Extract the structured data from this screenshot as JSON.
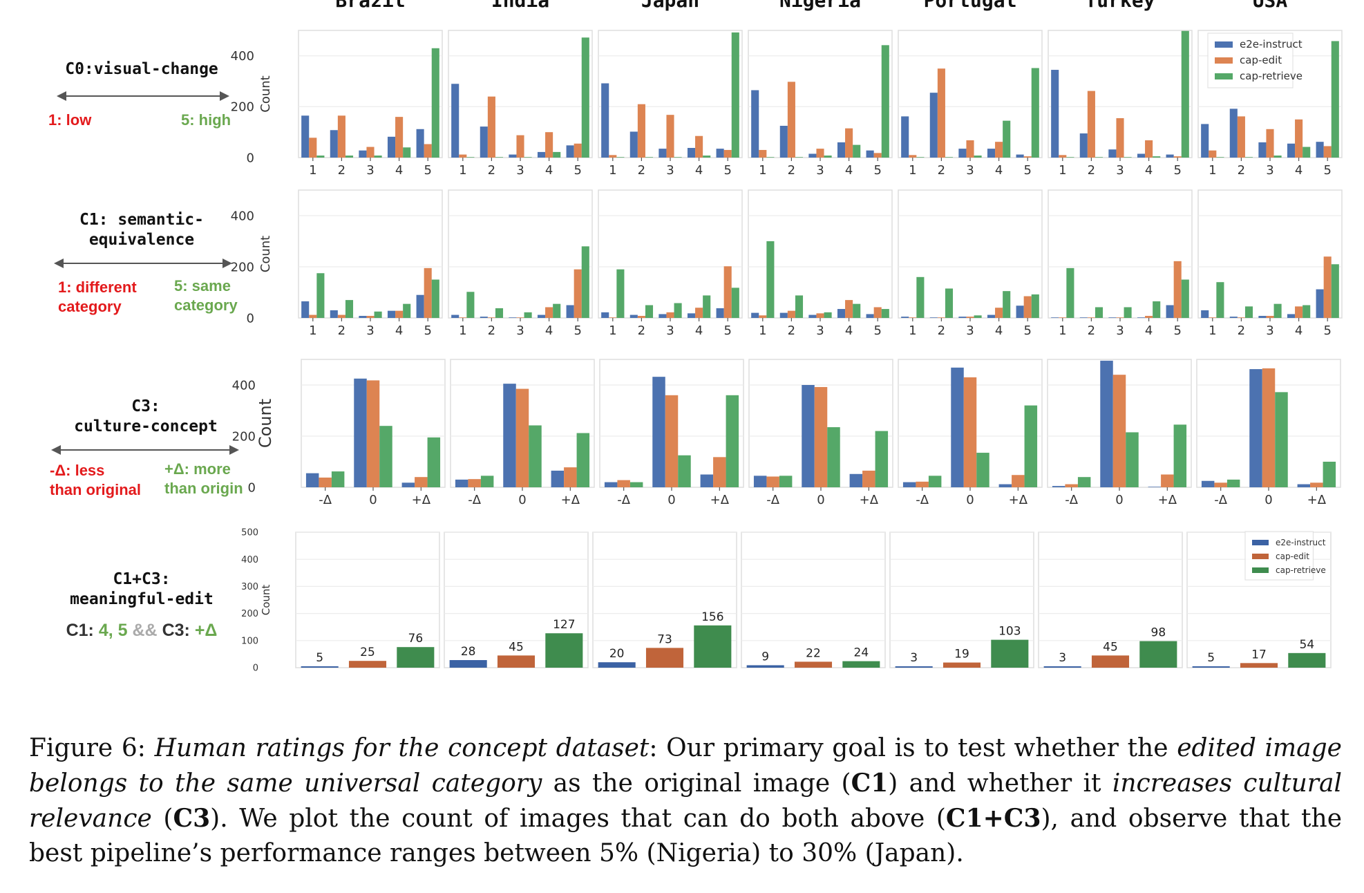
{
  "countries": [
    "Brazil",
    "India",
    "Japan",
    "Nigeria",
    "Portugal",
    "Turkey",
    "USA"
  ],
  "colors": {
    "e2e-instruct": "#4c72b0",
    "cap-edit": "#dd8452",
    "cap-retrieve": "#55a868",
    "e2e-instruct-dark": "#3b62a4",
    "cap-edit-dark": "#c0643a",
    "cap-retrieve-dark": "#3f8c4e"
  },
  "legend": [
    "e2e-instruct",
    "cap-edit",
    "cap-retrieve"
  ],
  "ylabel": "Count",
  "rows": {
    "c0": {
      "title": "C0:visual-change",
      "low": "1: low",
      "high": "5: high"
    },
    "c1": {
      "title_l1": "C1: semantic-",
      "title_l2": "equivalence",
      "low_l1": "1: different",
      "low_l2": "category",
      "high_l1": "5: same",
      "high_l2": "category"
    },
    "c3": {
      "title_l1": "C3:",
      "title_l2": "culture-concept",
      "low_l1": "-Δ: less",
      "low_l2": "than original",
      "high_l1": "+Δ: more",
      "high_l2": "than origin"
    },
    "c13": {
      "title_l1": "C1+C3:",
      "title_l2": "meaningful-edit",
      "f_c1": "C1:",
      "f_vals": "4, 5",
      "f_and": "&&",
      "f_c3": "C3:",
      "f_delta": "+Δ"
    }
  },
  "caption": {
    "fig": "Figure 6:",
    "t1": "Human ratings for the concept dataset",
    "t2": ": Our primary goal is to test whether the ",
    "t3": "edited image belongs to the same universal category",
    "t4": " as the original image (",
    "t5": "C1",
    "t6": ") and whether it ",
    "t7": "increases cultural relevance",
    "t8": " (",
    "t9": "C3",
    "t10": "). We plot the count of images that can do both above (",
    "t11": "C1+C3",
    "t12": "), and observe that the best pipeline’s performance ranges between 5% (Nigeria) to 30% (Japan)."
  },
  "chart_data": [
    {
      "id": "C0",
      "type": "bar",
      "categories": [
        "1",
        "2",
        "3",
        "4",
        "5"
      ],
      "ylim": [
        0,
        500
      ],
      "yticks": [
        0,
        200,
        400
      ],
      "grid": true,
      "legend": "top-right (USA panel)",
      "panels": [
        {
          "country": "Brazil",
          "series": [
            {
              "name": "e2e-instruct",
              "values": [
                165,
                108,
                28,
                82,
                112
              ]
            },
            {
              "name": "cap-edit",
              "values": [
                78,
                165,
                42,
                160,
                53
              ]
            },
            {
              "name": "cap-retrieve",
              "values": [
                8,
                8,
                8,
                40,
                430
              ]
            }
          ]
        },
        {
          "country": "India",
          "series": [
            {
              "name": "e2e-instruct",
              "values": [
                290,
                122,
                12,
                22,
                48
              ]
            },
            {
              "name": "cap-edit",
              "values": [
                12,
                240,
                88,
                100,
                55
              ]
            },
            {
              "name": "cap-retrieve",
              "values": [
                2,
                2,
                2,
                22,
                472
              ]
            }
          ]
        },
        {
          "country": "Japan",
          "series": [
            {
              "name": "e2e-instruct",
              "values": [
                292,
                102,
                35,
                38,
                35
              ]
            },
            {
              "name": "cap-edit",
              "values": [
                10,
                210,
                168,
                85,
                30
              ]
            },
            {
              "name": "cap-retrieve",
              "values": [
                2,
                2,
                2,
                8,
                492
              ]
            }
          ]
        },
        {
          "country": "Nigeria",
          "series": [
            {
              "name": "e2e-instruct",
              "values": [
                265,
                125,
                15,
                60,
                28
              ]
            },
            {
              "name": "cap-edit",
              "values": [
                30,
                298,
                35,
                115,
                18
              ]
            },
            {
              "name": "cap-retrieve",
              "values": [
                2,
                2,
                8,
                50,
                442
              ]
            }
          ]
        },
        {
          "country": "Portugal",
          "series": [
            {
              "name": "e2e-instruct",
              "values": [
                162,
                255,
                35,
                35,
                12
              ]
            },
            {
              "name": "cap-edit",
              "values": [
                10,
                350,
                68,
                62,
                5
              ]
            },
            {
              "name": "cap-retrieve",
              "values": [
                2,
                2,
                8,
                145,
                352
              ]
            }
          ]
        },
        {
          "country": "Turkey",
          "series": [
            {
              "name": "e2e-instruct",
              "values": [
                345,
                95,
                32,
                15,
                12
              ]
            },
            {
              "name": "cap-edit",
              "values": [
                10,
                262,
                155,
                68,
                5
              ]
            },
            {
              "name": "cap-retrieve",
              "values": [
                2,
                2,
                2,
                5,
                498
              ]
            }
          ]
        },
        {
          "country": "USA",
          "series": [
            {
              "name": "e2e-instruct",
              "values": [
                132,
                192,
                60,
                55,
                62
              ]
            },
            {
              "name": "cap-edit",
              "values": [
                28,
                162,
                112,
                150,
                45
              ]
            },
            {
              "name": "cap-retrieve",
              "values": [
                2,
                2,
                8,
                42,
                458
              ]
            }
          ]
        }
      ]
    },
    {
      "id": "C1",
      "type": "bar",
      "categories": [
        "1",
        "2",
        "3",
        "4",
        "5"
      ],
      "ylim": [
        0,
        500
      ],
      "yticks": [
        0,
        200,
        400
      ],
      "grid": true,
      "panels": [
        {
          "country": "Brazil",
          "series": [
            {
              "name": "e2e-instruct",
              "values": [
                65,
                30,
                8,
                28,
                90
              ]
            },
            {
              "name": "cap-edit",
              "values": [
                12,
                12,
                8,
                28,
                195
              ]
            },
            {
              "name": "cap-retrieve",
              "values": [
                175,
                70,
                25,
                55,
                150
              ]
            }
          ]
        },
        {
          "country": "India",
          "series": [
            {
              "name": "e2e-instruct",
              "values": [
                12,
                5,
                2,
                12,
                50
              ]
            },
            {
              "name": "cap-edit",
              "values": [
                2,
                2,
                2,
                42,
                190
              ]
            },
            {
              "name": "cap-retrieve",
              "values": [
                102,
                38,
                22,
                55,
                280
              ]
            }
          ]
        },
        {
          "country": "Japan",
          "series": [
            {
              "name": "e2e-instruct",
              "values": [
                22,
                12,
                15,
                18,
                38
              ]
            },
            {
              "name": "cap-edit",
              "values": [
                2,
                8,
                22,
                40,
                202
              ]
            },
            {
              "name": "cap-retrieve",
              "values": [
                190,
                50,
                58,
                88,
                118
              ]
            }
          ]
        },
        {
          "country": "Nigeria",
          "series": [
            {
              "name": "e2e-instruct",
              "values": [
                20,
                20,
                12,
                35,
                15
              ]
            },
            {
              "name": "cap-edit",
              "values": [
                10,
                28,
                18,
                70,
                42
              ]
            },
            {
              "name": "cap-retrieve",
              "values": [
                300,
                88,
                22,
                55,
                35
              ]
            }
          ]
        },
        {
          "country": "Portugal",
          "series": [
            {
              "name": "e2e-instruct",
              "values": [
                5,
                2,
                5,
                12,
                48
              ]
            },
            {
              "name": "cap-edit",
              "values": [
                2,
                2,
                5,
                40,
                85
              ]
            },
            {
              "name": "cap-retrieve",
              "values": [
                160,
                115,
                10,
                105,
                92
              ]
            }
          ]
        },
        {
          "country": "Turkey",
          "series": [
            {
              "name": "e2e-instruct",
              "values": [
                2,
                2,
                2,
                2,
                50
              ]
            },
            {
              "name": "cap-edit",
              "values": [
                2,
                2,
                2,
                8,
                222
              ]
            },
            {
              "name": "cap-retrieve",
              "values": [
                195,
                42,
                42,
                65,
                150
              ]
            }
          ]
        },
        {
          "country": "USA",
          "series": [
            {
              "name": "e2e-instruct",
              "values": [
                30,
                5,
                8,
                15,
                112
              ]
            },
            {
              "name": "cap-edit",
              "values": [
                2,
                2,
                8,
                45,
                240
              ]
            },
            {
              "name": "cap-retrieve",
              "values": [
                140,
                45,
                55,
                50,
                210
              ]
            }
          ]
        }
      ]
    },
    {
      "id": "C3",
      "type": "bar",
      "categories": [
        "-Δ",
        "0",
        "+Δ"
      ],
      "ylim": [
        0,
        500
      ],
      "yticks": [
        0,
        200,
        400
      ],
      "grid": true,
      "panels": [
        {
          "country": "Brazil",
          "series": [
            {
              "name": "e2e-instruct",
              "values": [
                55,
                425,
                18
              ]
            },
            {
              "name": "cap-edit",
              "values": [
                38,
                418,
                40
              ]
            },
            {
              "name": "cap-retrieve",
              "values": [
                62,
                240,
                195
              ]
            }
          ]
        },
        {
          "country": "India",
          "series": [
            {
              "name": "e2e-instruct",
              "values": [
                30,
                405,
                65
              ]
            },
            {
              "name": "cap-edit",
              "values": [
                32,
                385,
                78
              ]
            },
            {
              "name": "cap-retrieve",
              "values": [
                45,
                242,
                212
              ]
            }
          ]
        },
        {
          "country": "Japan",
          "series": [
            {
              "name": "e2e-instruct",
              "values": [
                20,
                432,
                50
              ]
            },
            {
              "name": "cap-edit",
              "values": [
                28,
                360,
                118
              ]
            },
            {
              "name": "cap-retrieve",
              "values": [
                20,
                125,
                360
              ]
            }
          ]
        },
        {
          "country": "Nigeria",
          "series": [
            {
              "name": "e2e-instruct",
              "values": [
                45,
                400,
                52
              ]
            },
            {
              "name": "cap-edit",
              "values": [
                42,
                392,
                65
              ]
            },
            {
              "name": "cap-retrieve",
              "values": [
                45,
                235,
                220
              ]
            }
          ]
        },
        {
          "country": "Portugal",
          "series": [
            {
              "name": "e2e-instruct",
              "values": [
                20,
                468,
                12
              ]
            },
            {
              "name": "cap-edit",
              "values": [
                22,
                430,
                48
              ]
            },
            {
              "name": "cap-retrieve",
              "values": [
                45,
                135,
                320
              ]
            }
          ]
        },
        {
          "country": "Turkey",
          "series": [
            {
              "name": "e2e-instruct",
              "values": [
                5,
                495,
                2
              ]
            },
            {
              "name": "cap-edit",
              "values": [
                12,
                440,
                50
              ]
            },
            {
              "name": "cap-retrieve",
              "values": [
                40,
                215,
                245
              ]
            }
          ]
        },
        {
          "country": "USA",
          "series": [
            {
              "name": "e2e-instruct",
              "values": [
                25,
                462,
                12
              ]
            },
            {
              "name": "cap-edit",
              "values": [
                18,
                465,
                18
              ]
            },
            {
              "name": "cap-retrieve",
              "values": [
                30,
                372,
                100
              ]
            }
          ]
        }
      ]
    },
    {
      "id": "C1+C3",
      "type": "bar",
      "categories": [
        "e2e-instruct",
        "cap-edit",
        "cap-retrieve"
      ],
      "ylim": [
        0,
        500
      ],
      "yticks": [
        0,
        100,
        200,
        300,
        400,
        500
      ],
      "grid": true,
      "data_labels": true,
      "legend": "top-right (USA panel)",
      "panels": [
        {
          "country": "Brazil",
          "values": [
            5,
            25,
            76
          ]
        },
        {
          "country": "India",
          "values": [
            28,
            45,
            127
          ]
        },
        {
          "country": "Japan",
          "values": [
            20,
            73,
            156
          ]
        },
        {
          "country": "Nigeria",
          "values": [
            9,
            22,
            24
          ]
        },
        {
          "country": "Portugal",
          "values": [
            3,
            19,
            103
          ]
        },
        {
          "country": "Turkey",
          "values": [
            3,
            45,
            98
          ]
        },
        {
          "country": "USA",
          "values": [
            5,
            17,
            54
          ]
        }
      ]
    }
  ]
}
